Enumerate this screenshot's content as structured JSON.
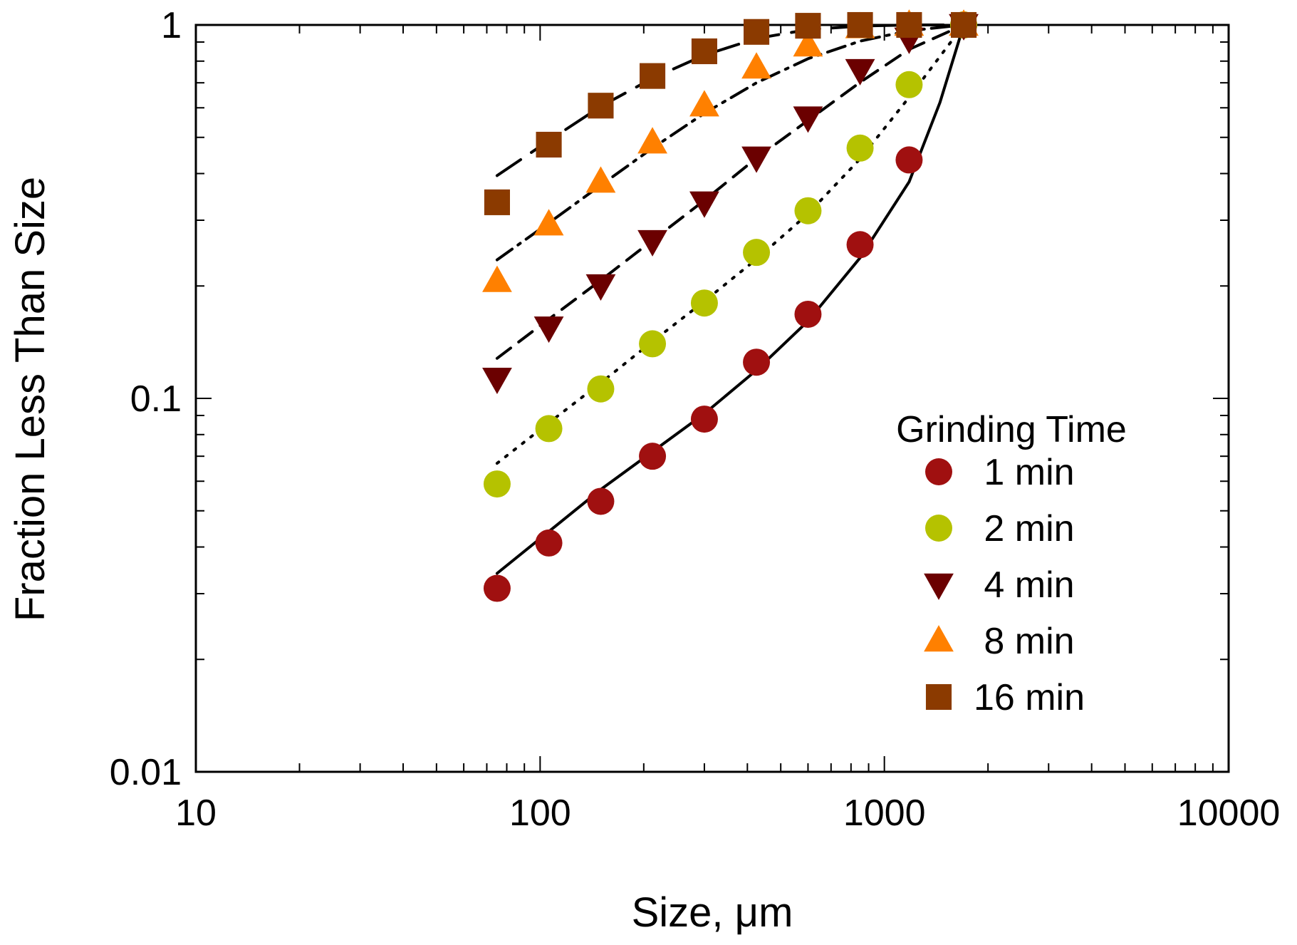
{
  "chart_data": {
    "type": "scatter",
    "x_scale": "log",
    "y_scale": "log",
    "xlabel": "Size, μm",
    "ylabel": "Fraction Less Than Size",
    "xlim": [
      10,
      10000
    ],
    "ylim": [
      0.01,
      1
    ],
    "x_tick_labels": [
      "10",
      "100",
      "1000",
      "10000"
    ],
    "y_tick_labels": [
      "0.01",
      "0.1",
      "1"
    ],
    "legend": {
      "title": "Grinding Time",
      "placement": "right"
    },
    "x": [
      75,
      106,
      150,
      212,
      300,
      425,
      600,
      850,
      1180,
      1700
    ],
    "series": [
      {
        "name": "1 min",
        "marker": "circle",
        "color": "#A01010",
        "values": [
          0.031,
          0.041,
          0.053,
          0.07,
          0.088,
          0.125,
          0.168,
          0.258,
          0.435,
          1.0
        ],
        "fit_line": "solid",
        "fit": [
          [
            75,
            0.034
          ],
          [
            106,
            0.044
          ],
          [
            150,
            0.057
          ],
          [
            212,
            0.072
          ],
          [
            300,
            0.091
          ],
          [
            425,
            0.119
          ],
          [
            600,
            0.161
          ],
          [
            850,
            0.238
          ],
          [
            1180,
            0.38
          ],
          [
            1450,
            0.62
          ],
          [
            1700,
            1.0
          ]
        ]
      },
      {
        "name": "2 min",
        "marker": "circle",
        "color": "#B5C200",
        "values": [
          0.059,
          0.083,
          0.106,
          0.14,
          0.18,
          0.246,
          0.318,
          0.468,
          0.692,
          1.0
        ],
        "fit_line": "dotted",
        "fit": [
          [
            75,
            0.067
          ],
          [
            106,
            0.086
          ],
          [
            150,
            0.11
          ],
          [
            212,
            0.142
          ],
          [
            300,
            0.182
          ],
          [
            425,
            0.236
          ],
          [
            600,
            0.312
          ],
          [
            850,
            0.438
          ],
          [
            1180,
            0.64
          ],
          [
            1700,
            1.0
          ]
        ]
      },
      {
        "name": "4 min",
        "marker": "triangle-down",
        "color": "#6B0000",
        "values": [
          0.113,
          0.155,
          0.201,
          0.264,
          0.335,
          0.442,
          0.566,
          0.758,
          0.92,
          1.0
        ],
        "fit_line": "dashed",
        "fit": [
          [
            75,
            0.128
          ],
          [
            106,
            0.163
          ],
          [
            150,
            0.207
          ],
          [
            212,
            0.265
          ],
          [
            300,
            0.339
          ],
          [
            425,
            0.44
          ],
          [
            600,
            0.555
          ],
          [
            850,
            0.702
          ],
          [
            1180,
            0.86
          ],
          [
            1700,
            1.0
          ]
        ]
      },
      {
        "name": "8 min",
        "marker": "triangle-up",
        "color": "#FF8000",
        "values": [
          0.206,
          0.292,
          0.38,
          0.484,
          0.608,
          0.768,
          0.88,
          0.985,
          1.0,
          1.0
        ],
        "fit_line": "dash-dot",
        "fit": [
          [
            75,
            0.235
          ],
          [
            106,
            0.295
          ],
          [
            150,
            0.372
          ],
          [
            212,
            0.468
          ],
          [
            300,
            0.58
          ],
          [
            425,
            0.7
          ],
          [
            600,
            0.812
          ],
          [
            850,
            0.905
          ],
          [
            1180,
            0.965
          ],
          [
            1700,
            1.0
          ]
        ]
      },
      {
        "name": "16 min",
        "marker": "square",
        "color": "#8B3A00",
        "values": [
          0.335,
          0.478,
          0.608,
          0.73,
          0.85,
          0.958,
          0.995,
          1.0,
          1.0,
          1.0
        ],
        "fit_line": "long-dash",
        "fit": [
          [
            75,
            0.395
          ],
          [
            106,
            0.49
          ],
          [
            150,
            0.605
          ],
          [
            212,
            0.72
          ],
          [
            300,
            0.83
          ],
          [
            425,
            0.92
          ],
          [
            600,
            0.972
          ],
          [
            850,
            0.993
          ],
          [
            1180,
            1.0
          ],
          [
            1700,
            1.0
          ]
        ]
      }
    ]
  }
}
